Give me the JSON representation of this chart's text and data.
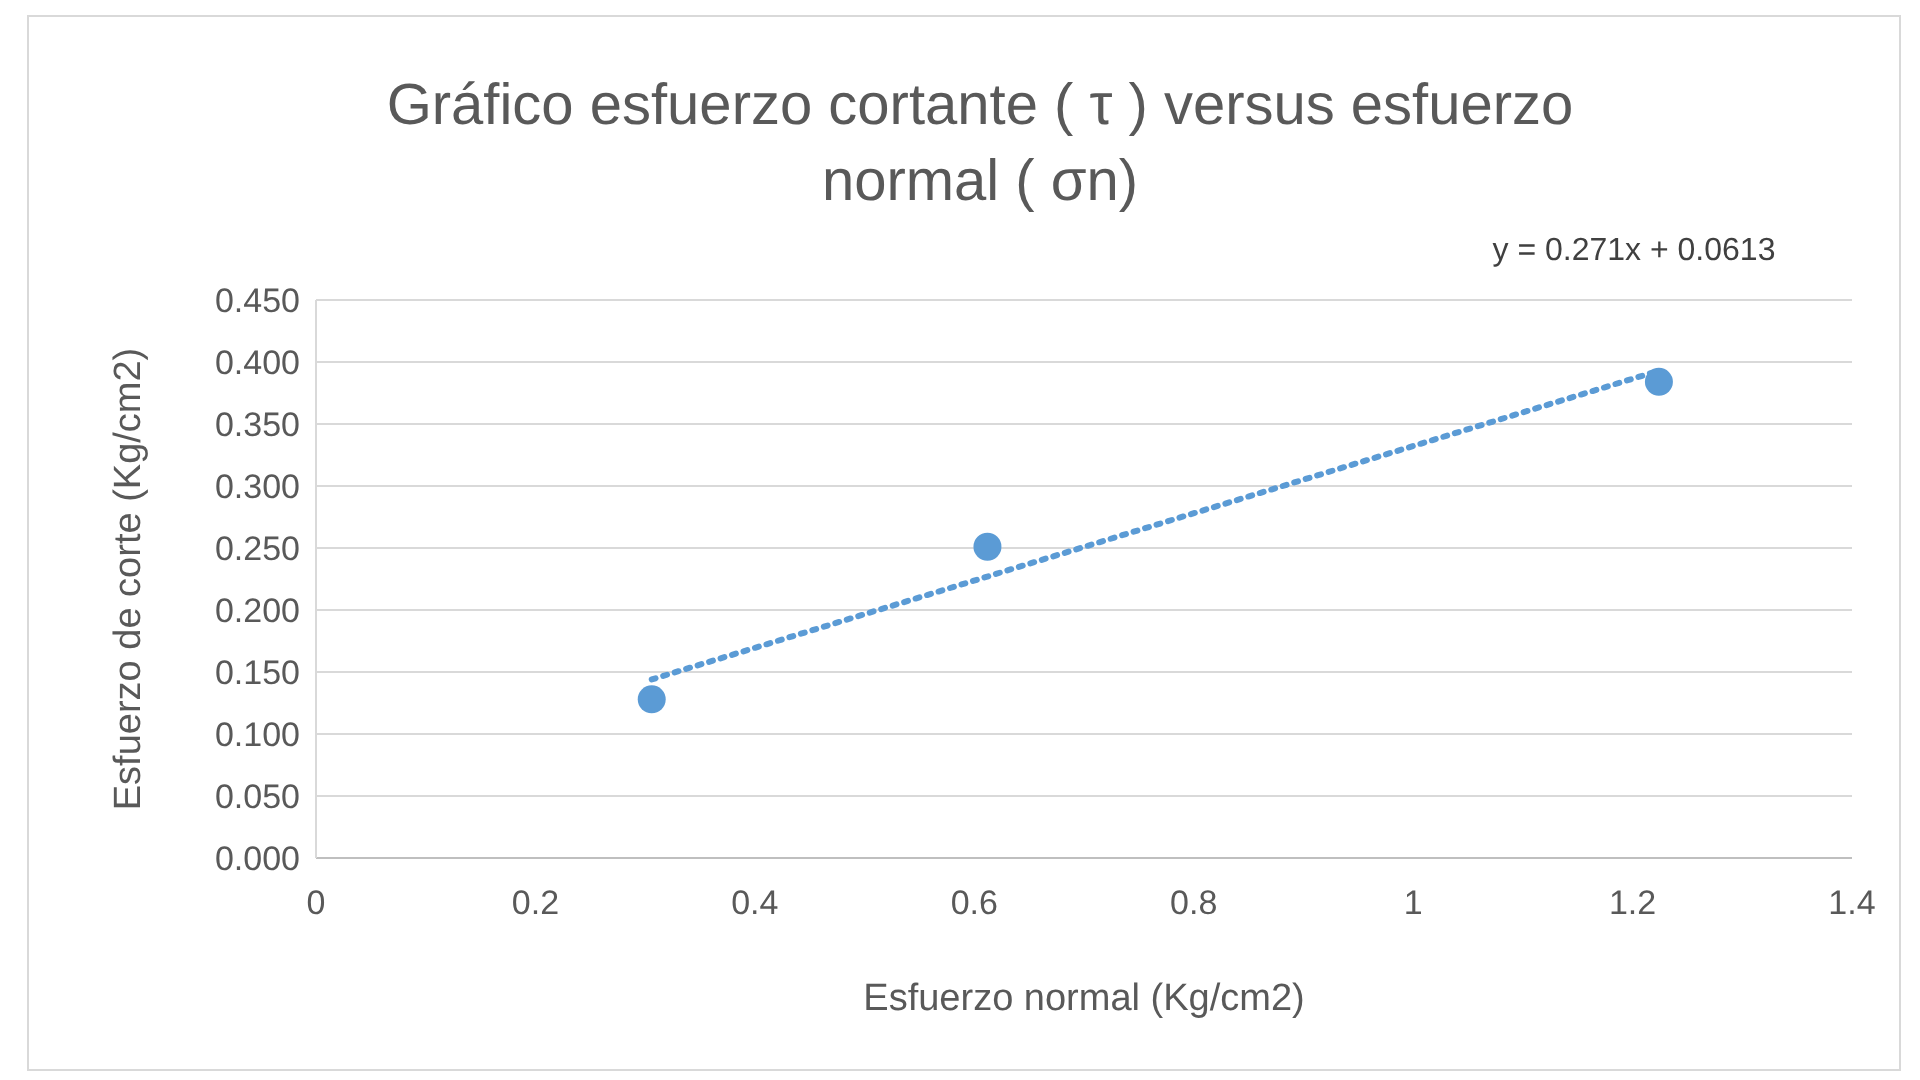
{
  "chart_data": {
    "type": "scatter",
    "title": "Gráfico esfuerzo cortante ( τ ) versus esfuerzo normal ( σn)",
    "xlabel": "Esfuerzo normal (Kg/cm2)",
    "ylabel": "Esfuerzo de corte (Kg/cm2)",
    "annotations": [
      "y = 0.271x + 0.0613"
    ],
    "x": [
      0.306,
      0.612,
      1.224
    ],
    "series": [
      {
        "color": "#5b9bd5",
        "values": [
          0.128,
          0.251,
          0.384
        ],
        "marker": "circle"
      },
      {
        "type": "line",
        "color": "#5b9bd5",
        "x": [
          0.306,
          1.224
        ],
        "values": [
          0.144,
          0.393
        ],
        "line_style": "dotted",
        "marker": "none"
      }
    ],
    "xlim": [
      0,
      1.4
    ],
    "xticks": [
      0,
      0.2,
      0.4,
      0.6,
      0.8,
      1,
      1.2,
      1.4
    ],
    "ylim": [
      0,
      0.45
    ],
    "yticks": [
      {
        "value": 0,
        "label": "0.000"
      },
      {
        "value": 0.05,
        "label": "0.050"
      },
      {
        "value": 0.1,
        "label": "0.100"
      },
      {
        "value": 0.15,
        "label": "0.150"
      },
      {
        "value": 0.2,
        "label": "0.200"
      },
      {
        "value": 0.25,
        "label": "0.250"
      },
      {
        "value": 0.3,
        "label": "0.300"
      },
      {
        "value": 0.35,
        "label": "0.350"
      },
      {
        "value": 0.4,
        "label": "0.400"
      },
      {
        "value": 0.45,
        "label": "0.450"
      }
    ],
    "grid": "y"
  }
}
